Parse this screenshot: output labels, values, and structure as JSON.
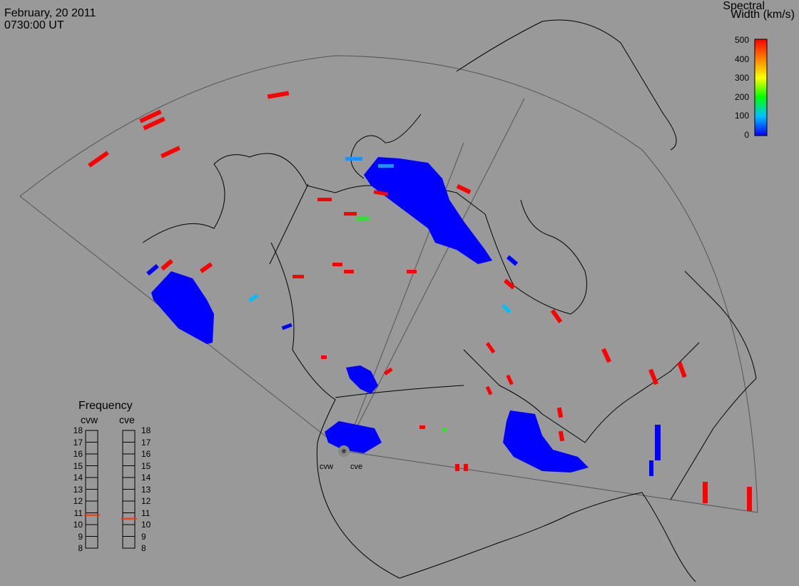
{
  "header": {
    "date": "February, 20 2011",
    "time": "0730:00 UT"
  },
  "colorbar": {
    "title_line1": "Spectral",
    "title_line2": "Width (km/s)",
    "ticks": [
      "500",
      "400",
      "300",
      "200",
      "100",
      "0"
    ],
    "range": [
      0,
      500
    ],
    "colors": [
      "#ff0000",
      "#ff8000",
      "#ffff00",
      "#00ff00",
      "#00c0ff",
      "#0000ff"
    ]
  },
  "frequency_panel": {
    "title": "Frequency",
    "left_label": "cvw",
    "right_label": "cve",
    "ticks": [
      "18",
      "17",
      "16",
      "15",
      "14",
      "13",
      "12",
      "11",
      "10",
      "9",
      "8"
    ],
    "cvw_value_mhz": 10.8,
    "cve_value_mhz": 10.5,
    "marker_color": "#ff3300"
  },
  "radar_sites": [
    {
      "name": "cvw"
    },
    {
      "name": "cve"
    }
  ],
  "colors": {
    "background": "#999999",
    "coast": "#000000",
    "fov": "#555555",
    "scatter_low": "#0000ff",
    "scatter_high": "#ff0000"
  }
}
